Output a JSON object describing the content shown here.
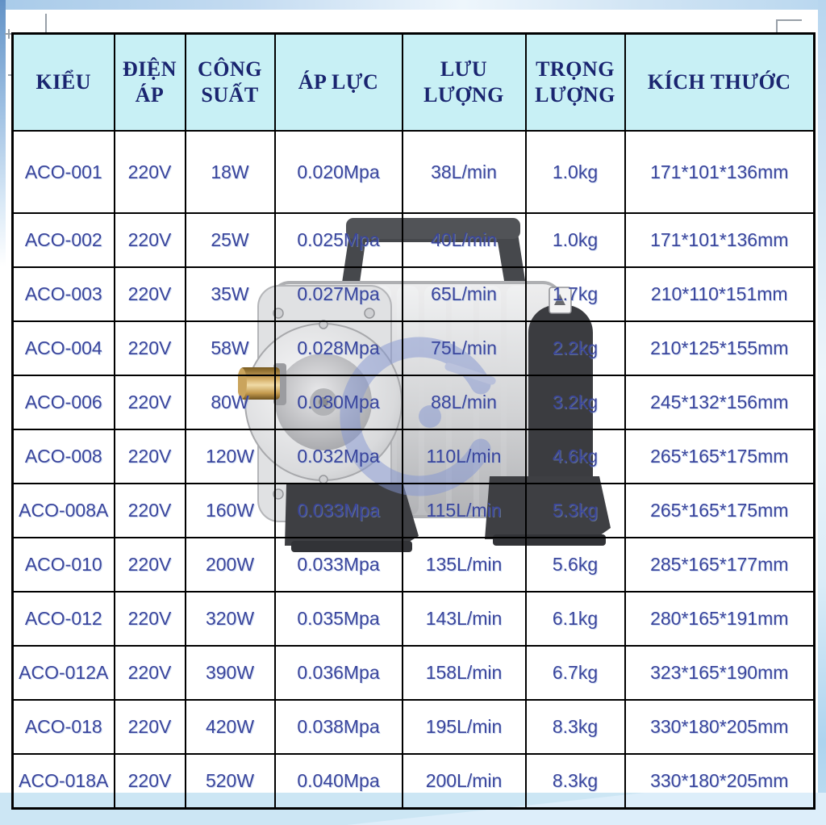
{
  "table": {
    "headers": [
      "KIỂU",
      "ĐIỆN ÁP",
      "CÔNG SUẤT",
      "ÁP LỰC",
      "LƯU LƯỢNG",
      "TRỌNG LƯỢNG",
      "KÍCH THƯỚC"
    ],
    "rows": [
      [
        "ACO-001",
        "220V",
        "18W",
        "0.020Mpa",
        "38L/min",
        "1.0kg",
        "171*101*136mm"
      ],
      [
        "ACO-002",
        "220V",
        "25W",
        "0.025Mpa",
        "40L/min",
        "1.0kg",
        "171*101*136mm"
      ],
      [
        "ACO-003",
        "220V",
        "35W",
        "0.027Mpa",
        "65L/min",
        "1.7kg",
        "210*110*151mm"
      ],
      [
        "ACO-004",
        "220V",
        "58W",
        "0.028Mpa",
        "75L/min",
        "2.2kg",
        "210*125*155mm"
      ],
      [
        "ACO-006",
        "220V",
        "80W",
        "0.030Mpa",
        "88L/min",
        "3.2kg",
        "245*132*156mm"
      ],
      [
        "ACO-008",
        "220V",
        "120W",
        "0.032Mpa",
        "110L/min",
        "4.6kg",
        "265*165*175mm"
      ],
      [
        "ACO-008A",
        "220V",
        "160W",
        "0.033Mpa",
        "115L/min",
        "5.3kg",
        "265*165*175mm"
      ],
      [
        "ACO-010",
        "220V",
        "200W",
        "0.033Mpa",
        "135L/min",
        "5.6kg",
        "285*165*177mm"
      ],
      [
        "ACO-012",
        "220V",
        "320W",
        "0.035Mpa",
        "143L/min",
        "6.1kg",
        "280*165*191mm"
      ],
      [
        "ACO-012A",
        "220V",
        "390W",
        "0.036Mpa",
        "158L/min",
        "6.7kg",
        "323*165*190mm"
      ],
      [
        "ACO-018",
        "220V",
        "420W",
        "0.038Mpa",
        "195L/min",
        "8.3kg",
        "330*180*205mm"
      ],
      [
        "ACO-018A",
        "220V",
        "520W",
        "0.040Mpa",
        "200L/min",
        "8.3kg",
        "330*180*205mm"
      ]
    ]
  },
  "colors": {
    "header_bg": "#c8f0f5",
    "header_text": "#1a2570",
    "cell_text": "#3a459c",
    "grid_line": "#000000",
    "page_accent_blue": "#cfe4f4"
  },
  "decorations": {
    "pump_image": "electromagnetic-air-pump-product-photo",
    "watermark": "shop-logo-watermark"
  }
}
